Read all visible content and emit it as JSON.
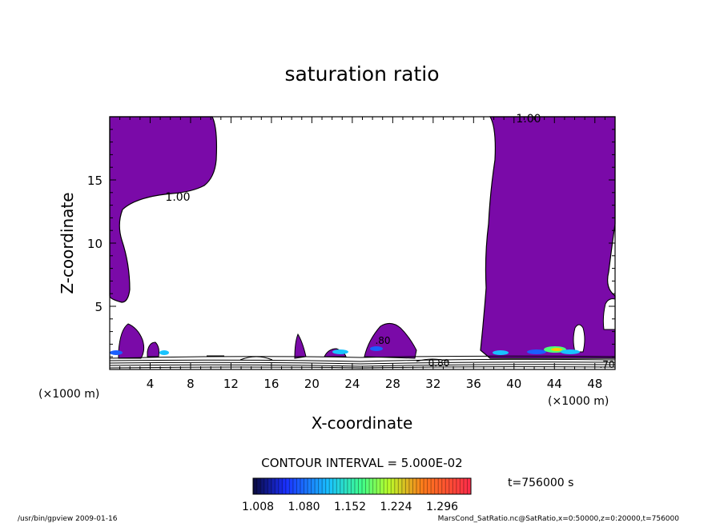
{
  "chart_data": {
    "type": "contour",
    "title": "saturation ratio",
    "xlabel": "X-coordinate",
    "ylabel": "Z-coordinate",
    "x_unit_left": "(×1000 m)",
    "x_unit_right": "(×1000 m)",
    "xlim": [
      0,
      50
    ],
    "ylim": [
      0,
      20
    ],
    "x_ticks": [
      4,
      8,
      12,
      16,
      20,
      24,
      28,
      32,
      36,
      40,
      44,
      48
    ],
    "y_ticks": [
      5,
      10,
      15
    ],
    "contour_interval_label": "CONTOUR INTERVAL = 5.000E-02",
    "time_label": "t=756000 s",
    "contour_labels": [
      "1.00",
      "1.00",
      ".80",
      "0.80",
      ".70"
    ],
    "colorbar": {
      "tick_labels": [
        "1.008",
        "1.080",
        "1.152",
        "1.224",
        "1.296"
      ],
      "min": 1.008,
      "max": 1.296
    },
    "fill_color": "#7a0aa8",
    "regions": [
      {
        "name": "left-supersaturated",
        "x": [
          0,
          10.5
        ],
        "z": [
          6,
          20
        ],
        "value": "≥1.00"
      },
      {
        "name": "right-supersaturated",
        "x": [
          37.5,
          50
        ],
        "z": [
          0.5,
          20
        ],
        "value": "≥1.00"
      }
    ]
  },
  "footer": {
    "left": "/usr/bin/gpview   2009-01-16",
    "right": "MarsCond_SatRatio.nc@SatRatio,x=0:50000,z=0:20000,t=756000"
  }
}
